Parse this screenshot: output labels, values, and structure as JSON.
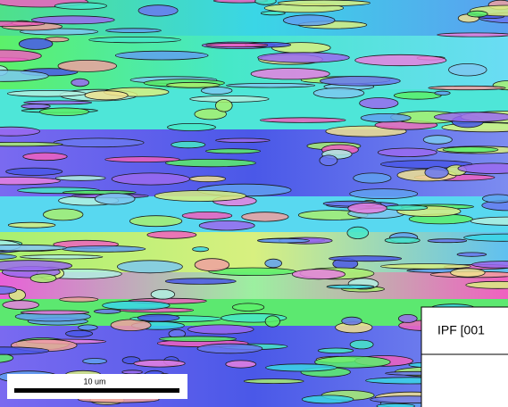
{
  "map": {
    "label": "IPF [001",
    "scale_bar": "10 um"
  }
}
